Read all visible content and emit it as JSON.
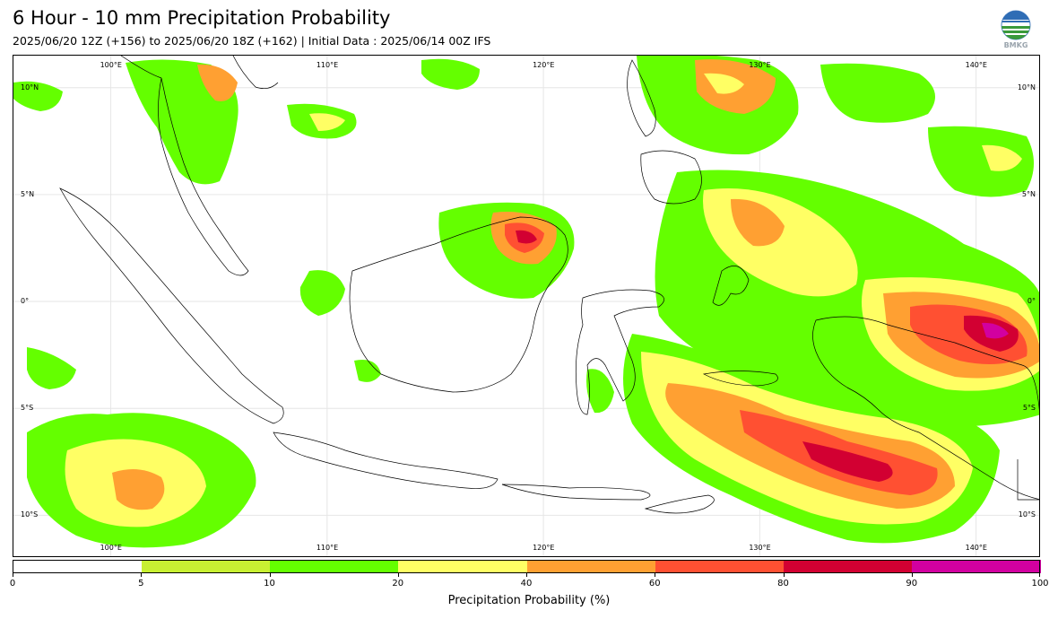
{
  "header": {
    "title": "6 Hour - 10 mm Precipitation Probability",
    "subtitle": "2025/06/20 12Z (+156) to 2025/06/20 18Z (+162) | Initial Data : 2025/06/14 00Z IFS",
    "logo_text": "BMKG"
  },
  "map": {
    "lon_min": 95.5,
    "lon_max": 143.0,
    "lat_min": -12.0,
    "lat_max": 11.5,
    "lon_labels": [
      "100°E",
      "110°E",
      "120°E",
      "130°E",
      "140°E"
    ],
    "lon_values": [
      100,
      110,
      120,
      130,
      140
    ],
    "lat_labels": [
      "10°N",
      "5°N",
      "0°",
      "5°S",
      "10°S"
    ],
    "lat_values": [
      10,
      5,
      0,
      -5,
      -10
    ],
    "grid_lines": true
  },
  "legend": {
    "title": "Precipitation Probability (%)",
    "bounds": [
      0,
      5,
      10,
      20,
      40,
      60,
      80,
      90,
      100
    ],
    "tick_labels": [
      "0",
      "5",
      "10",
      "20",
      "40",
      "60",
      "80",
      "90",
      "100"
    ],
    "colors": [
      "#ffffff",
      "#c8f032",
      "#64ff00",
      "#ffff64",
      "#ffa032",
      "#ff5032",
      "#d20032",
      "#d200a0"
    ]
  }
}
